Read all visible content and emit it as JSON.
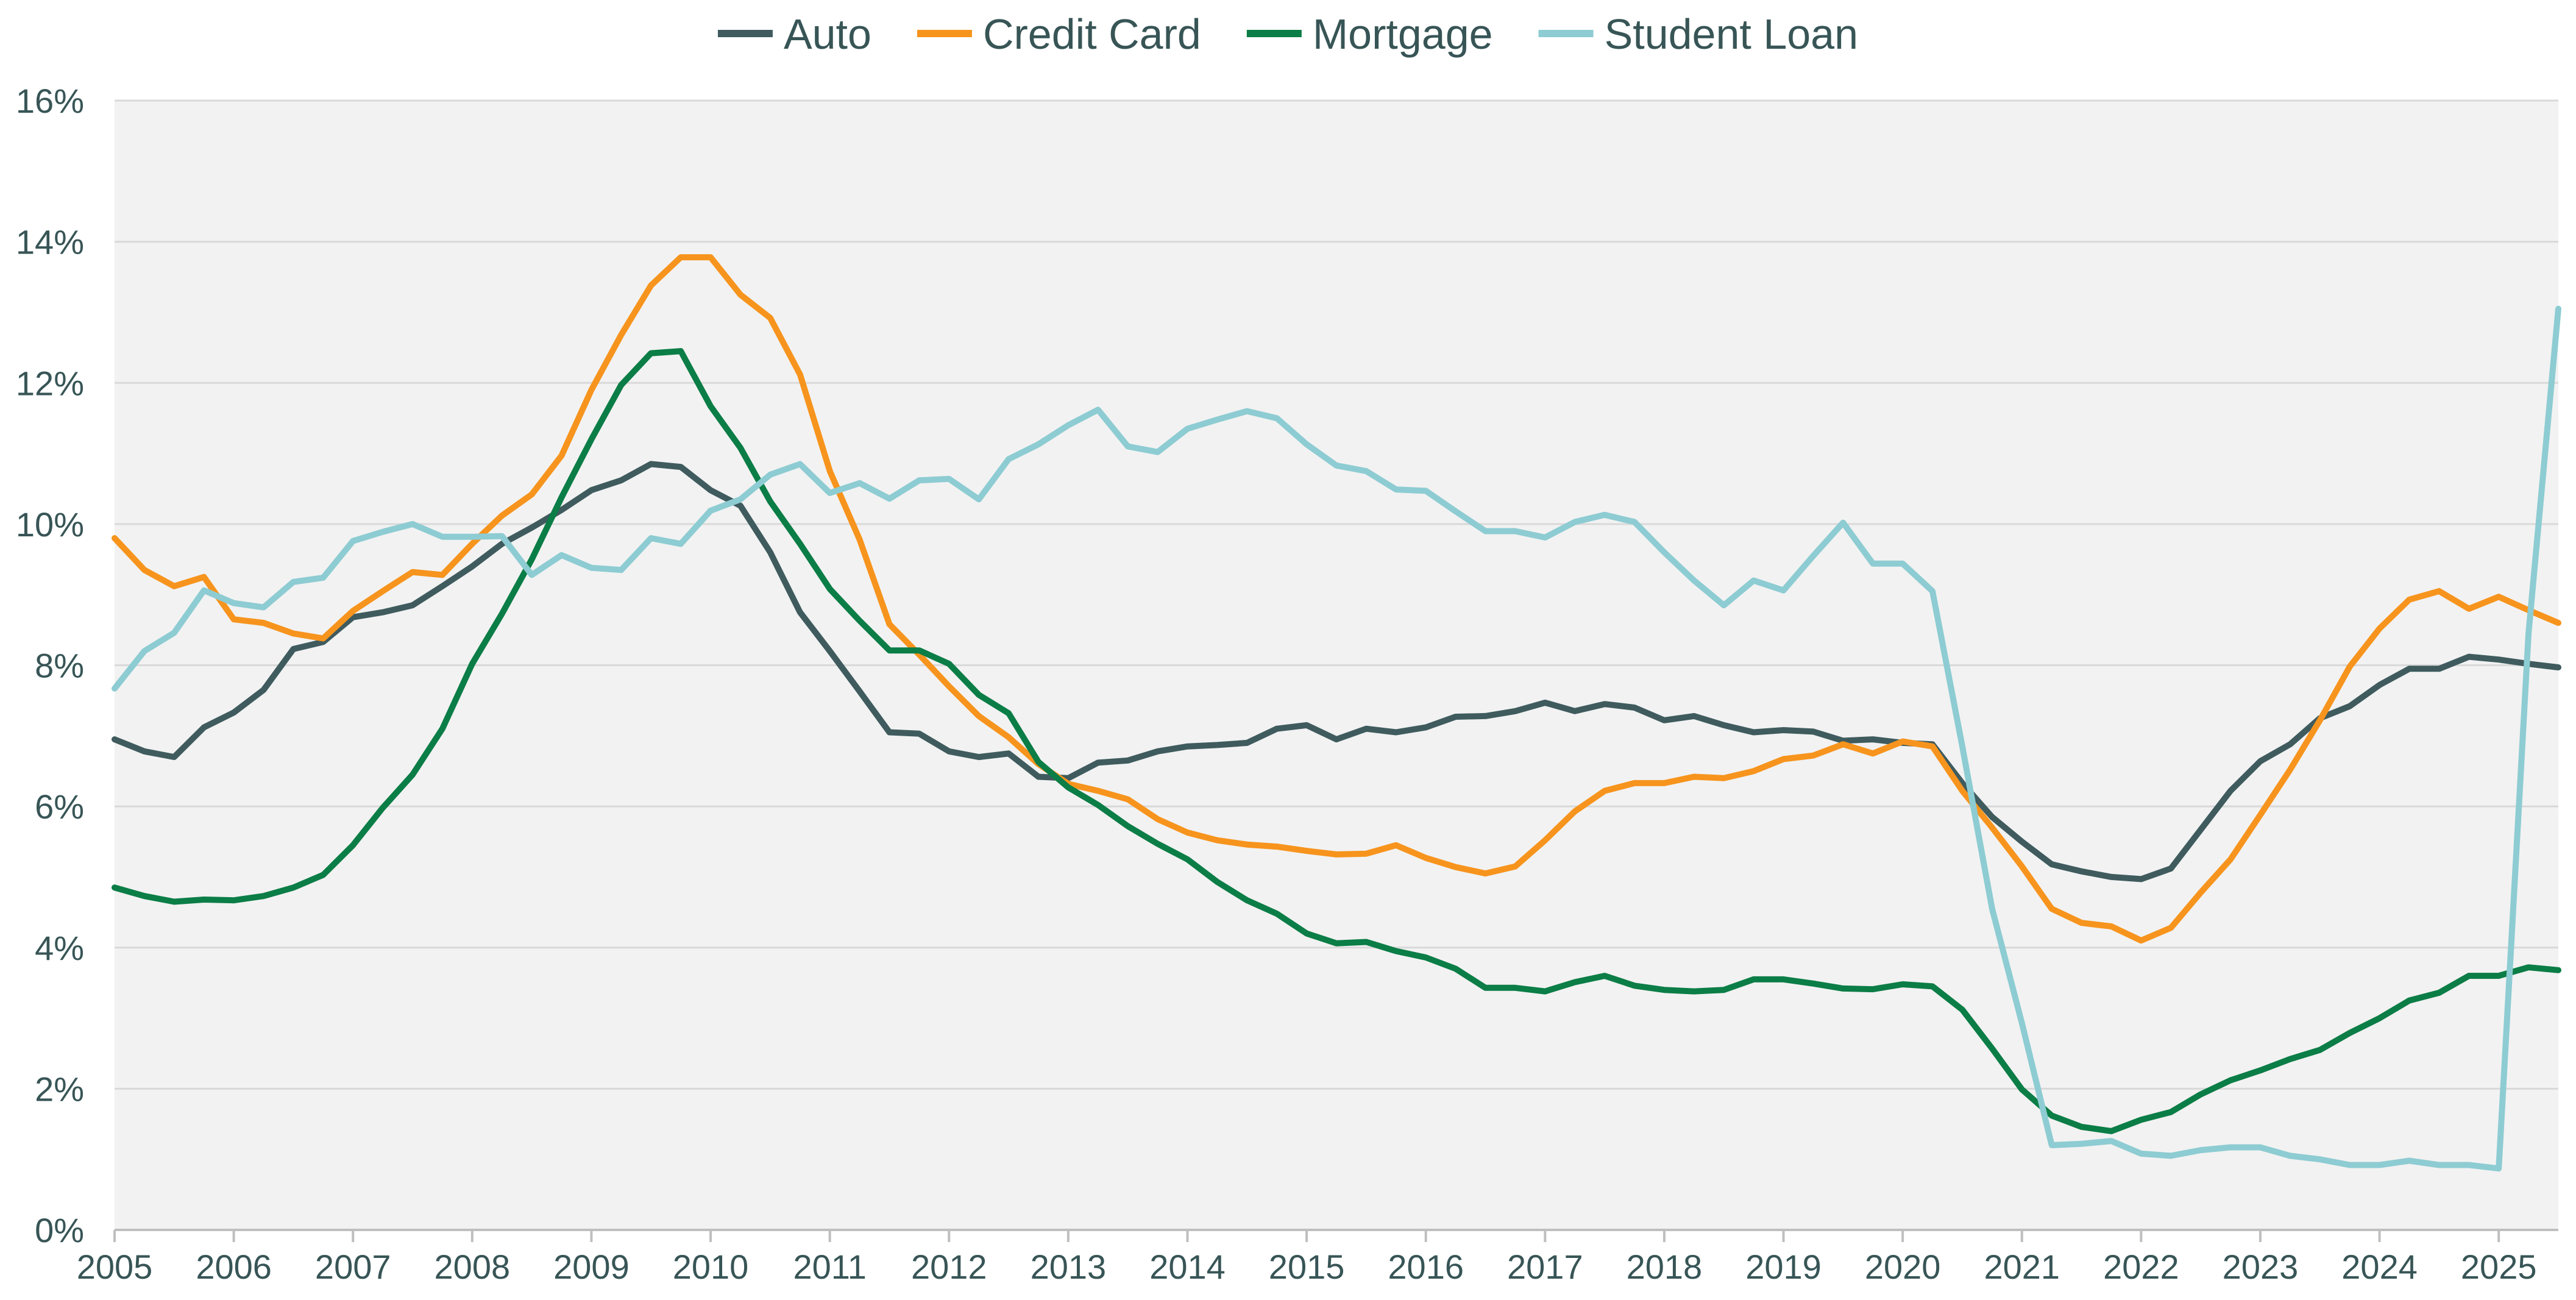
{
  "chart_data": {
    "type": "line",
    "title": "",
    "xlabel": "",
    "ylabel": "",
    "x_ticks": [
      "2005",
      "2006",
      "2007",
      "2008",
      "2009",
      "2010",
      "2011",
      "2012",
      "2013",
      "2014",
      "2015",
      "2016",
      "2017",
      "2018",
      "2019",
      "2020",
      "2021",
      "2022",
      "2023",
      "2024",
      "2025"
    ],
    "x_range": [
      2005,
      2025.5
    ],
    "ylim": [
      0,
      16
    ],
    "y_ticks": [
      "0%",
      "2%",
      "4%",
      "6%",
      "8%",
      "10%",
      "12%",
      "14%",
      "16%"
    ],
    "y_tick_values": [
      0,
      2,
      4,
      6,
      8,
      10,
      12,
      14,
      16
    ],
    "grid": "horizontal",
    "plot_background": "#f2f2f2",
    "gridline_color": "#d9d9d9",
    "legend_position": "top-center",
    "x": [
      2005.0,
      2005.25,
      2005.5,
      2005.75,
      2006.0,
      2006.25,
      2006.5,
      2006.75,
      2007.0,
      2007.25,
      2007.5,
      2007.75,
      2008.0,
      2008.25,
      2008.5,
      2008.75,
      2009.0,
      2009.25,
      2009.5,
      2009.75,
      2010.0,
      2010.25,
      2010.5,
      2010.75,
      2011.0,
      2011.25,
      2011.5,
      2011.75,
      2012.0,
      2012.25,
      2012.5,
      2012.75,
      2013.0,
      2013.25,
      2013.5,
      2013.75,
      2014.0,
      2014.25,
      2014.5,
      2014.75,
      2015.0,
      2015.25,
      2015.5,
      2015.75,
      2016.0,
      2016.25,
      2016.5,
      2016.75,
      2017.0,
      2017.25,
      2017.5,
      2017.75,
      2018.0,
      2018.25,
      2018.5,
      2018.75,
      2019.0,
      2019.25,
      2019.5,
      2019.75,
      2020.0,
      2020.25,
      2020.5,
      2020.75,
      2021.0,
      2021.25,
      2021.5,
      2021.75,
      2022.0,
      2022.25,
      2022.5,
      2022.75,
      2023.0,
      2023.25,
      2023.5,
      2023.75,
      2024.0,
      2024.25,
      2024.5,
      2024.75,
      2025.0,
      2025.25,
      2025.5
    ],
    "series": [
      {
        "name": "Auto",
        "color": "#3f5b5e",
        "values": [
          6.95,
          6.78,
          6.7,
          7.12,
          7.33,
          7.65,
          8.23,
          8.33,
          8.68,
          8.75,
          8.85,
          9.12,
          9.4,
          9.72,
          9.95,
          10.2,
          10.48,
          10.62,
          10.85,
          10.81,
          10.48,
          10.26,
          9.6,
          8.75,
          8.2,
          7.63,
          7.05,
          7.03,
          6.78,
          6.7,
          6.75,
          6.42,
          6.4,
          6.62,
          6.65,
          6.78,
          6.85,
          6.87,
          6.9,
          7.1,
          7.15,
          6.95,
          7.1,
          7.05,
          7.12,
          7.27,
          7.28,
          7.35,
          7.47,
          7.35,
          7.45,
          7.4,
          7.22,
          7.28,
          7.15,
          7.05,
          7.08,
          7.06,
          6.93,
          6.95,
          6.9,
          6.88,
          6.33,
          5.85,
          5.5,
          5.18,
          5.08,
          5.0,
          4.97,
          5.12,
          5.67,
          6.22,
          6.64,
          6.88,
          7.25,
          7.42,
          7.72,
          7.95,
          7.95,
          8.12,
          8.08,
          8.02,
          7.97
        ]
      },
      {
        "name": "Credit Card",
        "color": "#f7941d",
        "values": [
          9.8,
          9.35,
          9.12,
          9.25,
          8.65,
          8.6,
          8.45,
          8.38,
          8.77,
          9.05,
          9.32,
          9.28,
          9.72,
          10.12,
          10.42,
          10.97,
          11.9,
          12.68,
          13.38,
          13.78,
          13.78,
          13.25,
          12.92,
          12.12,
          10.75,
          9.78,
          8.58,
          8.15,
          7.7,
          7.28,
          6.98,
          6.6,
          6.32,
          6.22,
          6.1,
          5.82,
          5.63,
          5.52,
          5.46,
          5.43,
          5.37,
          5.32,
          5.33,
          5.45,
          5.27,
          5.14,
          5.05,
          5.15,
          5.52,
          5.93,
          6.22,
          6.33,
          6.33,
          6.42,
          6.4,
          6.5,
          6.67,
          6.72,
          6.88,
          6.75,
          6.92,
          6.85,
          6.22,
          5.7,
          5.15,
          4.55,
          4.35,
          4.3,
          4.1,
          4.28,
          4.78,
          5.25,
          5.88,
          6.52,
          7.22,
          7.98,
          8.52,
          8.93,
          9.05,
          8.8,
          8.97,
          8.78,
          8.6
        ]
      },
      {
        "name": "Mortgage",
        "color": "#0b7d46",
        "values": [
          4.85,
          4.73,
          4.65,
          4.68,
          4.67,
          4.73,
          4.85,
          5.03,
          5.45,
          5.98,
          6.45,
          7.1,
          8.02,
          8.73,
          9.5,
          10.38,
          11.2,
          11.97,
          12.42,
          12.45,
          11.67,
          11.08,
          10.32,
          9.72,
          9.08,
          8.63,
          8.21,
          8.21,
          8.02,
          7.58,
          7.32,
          6.63,
          6.27,
          6.02,
          5.72,
          5.47,
          5.25,
          4.93,
          4.67,
          4.48,
          4.2,
          4.06,
          4.08,
          3.95,
          3.86,
          3.7,
          3.43,
          3.43,
          3.38,
          3.51,
          3.6,
          3.46,
          3.4,
          3.38,
          3.4,
          3.55,
          3.55,
          3.49,
          3.42,
          3.41,
          3.48,
          3.45,
          3.12,
          2.57,
          1.99,
          1.62,
          1.46,
          1.4,
          1.56,
          1.67,
          1.92,
          2.12,
          2.26,
          2.42,
          2.55,
          2.79,
          3.0,
          3.25,
          3.36,
          3.6,
          3.6,
          3.72,
          3.68
        ]
      },
      {
        "name": "Student Loan",
        "color": "#8dccd2",
        "values": [
          7.67,
          8.2,
          8.46,
          9.06,
          8.88,
          8.82,
          9.18,
          9.24,
          9.76,
          9.89,
          10.0,
          9.82,
          9.82,
          9.83,
          9.28,
          9.56,
          9.38,
          9.35,
          9.8,
          9.72,
          10.19,
          10.35,
          10.7,
          10.85,
          10.44,
          10.58,
          10.36,
          10.62,
          10.64,
          10.35,
          10.92,
          11.13,
          11.4,
          11.62,
          11.1,
          11.02,
          11.35,
          11.48,
          11.6,
          11.5,
          11.13,
          10.83,
          10.75,
          10.49,
          10.47,
          10.18,
          9.9,
          9.9,
          9.81,
          10.03,
          10.13,
          10.03,
          9.6,
          9.2,
          8.85,
          9.2,
          9.06,
          9.55,
          10.02,
          9.44,
          9.44,
          9.05,
          6.85,
          4.55,
          2.93,
          1.2,
          1.22,
          1.26,
          1.08,
          1.05,
          1.13,
          1.17,
          1.17,
          1.05,
          1.0,
          0.92,
          0.92,
          0.98,
          0.92,
          0.92,
          0.87,
          8.45,
          13.05
        ]
      }
    ]
  }
}
